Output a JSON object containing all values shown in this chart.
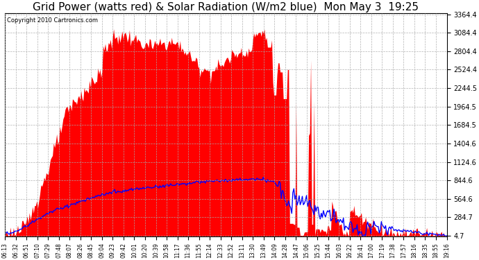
{
  "title": "Grid Power (watts red) & Solar Radiation (W/m2 blue)  Mon May 3  19:25",
  "copyright": "Copyright 2010 Cartronics.com",
  "yticks": [
    4.7,
    284.7,
    564.6,
    844.6,
    1124.6,
    1404.6,
    1684.5,
    1964.5,
    2244.5,
    2524.4,
    2804.4,
    3084.4,
    3364.4
  ],
  "ymin": 4.7,
  "ymax": 3364.4,
  "bg_color": "#ffffff",
  "plot_bg_color": "#ffffff",
  "red_fill_color": "red",
  "blue_line_color": "blue",
  "grid_color": "#aaaaaa",
  "title_fontsize": 11,
  "xtick_labels": [
    "06:13",
    "06:32",
    "06:51",
    "07:10",
    "07:29",
    "07:48",
    "08:07",
    "08:26",
    "08:45",
    "09:04",
    "09:23",
    "09:42",
    "10:01",
    "10:20",
    "10:39",
    "10:58",
    "11:17",
    "11:36",
    "11:55",
    "12:14",
    "12:33",
    "12:52",
    "13:11",
    "13:30",
    "13:49",
    "14:09",
    "14:28",
    "14:47",
    "15:06",
    "15:25",
    "15:44",
    "16:03",
    "16:22",
    "16:41",
    "17:00",
    "17:19",
    "17:38",
    "17:57",
    "18:16",
    "18:35",
    "18:55",
    "19:16"
  ]
}
